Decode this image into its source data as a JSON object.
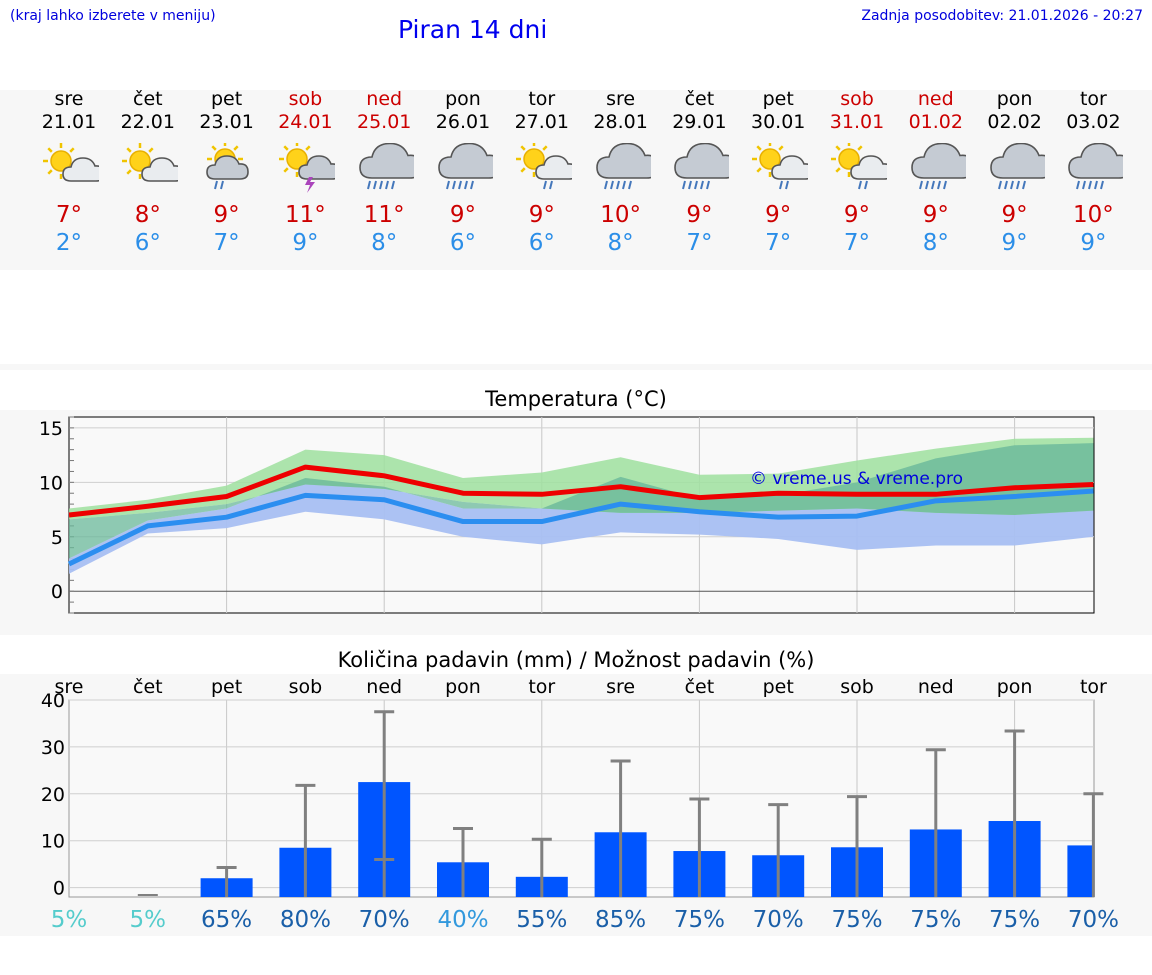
{
  "header": {
    "hint": "(kraj lahko izberete v meniju)",
    "title": "Piran 14 dni",
    "updated": "Zadnja posodobitev: 21.01.2026 - 20:27"
  },
  "colors": {
    "max_temp": "#cc0000",
    "min_temp": "#2b8ee8",
    "max_line": "#ee0000",
    "min_line": "#2b8ef0",
    "max_band": "#9fe09f",
    "min_band": "#a8bff2",
    "overlap_band": "#6ab89a",
    "bar": "#0055ff",
    "whisker": "#808080",
    "pct_low": "#55cccc",
    "pct_mid": "#3399dd",
    "pct_high": "#1a5fa8",
    "watermark": "#0000dd"
  },
  "days": [
    {
      "name": "sre",
      "date": "21.01",
      "weekend": false,
      "icon": "partly-cloudy-icon",
      "max": "7°",
      "min": "2°"
    },
    {
      "name": "čet",
      "date": "22.01",
      "weekend": false,
      "icon": "partly-cloudy-icon",
      "max": "8°",
      "min": "6°"
    },
    {
      "name": "pet",
      "date": "23.01",
      "weekend": false,
      "icon": "sun-rain-icon",
      "max": "9°",
      "min": "7°"
    },
    {
      "name": "sob",
      "date": "24.01",
      "weekend": true,
      "icon": "sun-thunder-icon",
      "max": "11°",
      "min": "9°"
    },
    {
      "name": "ned",
      "date": "25.01",
      "weekend": true,
      "icon": "rain-cloud-icon",
      "max": "11°",
      "min": "8°"
    },
    {
      "name": "pon",
      "date": "26.01",
      "weekend": false,
      "icon": "rain-cloud-icon",
      "max": "9°",
      "min": "6°"
    },
    {
      "name": "tor",
      "date": "27.01",
      "weekend": false,
      "icon": "sun-light-rain-icon",
      "max": "9°",
      "min": "6°"
    },
    {
      "name": "sre",
      "date": "28.01",
      "weekend": false,
      "icon": "rain-cloud-icon",
      "max": "10°",
      "min": "8°"
    },
    {
      "name": "čet",
      "date": "29.01",
      "weekend": false,
      "icon": "rain-cloud-icon",
      "max": "9°",
      "min": "7°"
    },
    {
      "name": "pet",
      "date": "30.01",
      "weekend": false,
      "icon": "sun-light-rain-icon",
      "max": "9°",
      "min": "7°"
    },
    {
      "name": "sob",
      "date": "31.01",
      "weekend": true,
      "icon": "sun-light-rain-icon",
      "max": "9°",
      "min": "7°"
    },
    {
      "name": "ned",
      "date": "01.02",
      "weekend": true,
      "icon": "rain-cloud-icon",
      "max": "9°",
      "min": "8°"
    },
    {
      "name": "pon",
      "date": "02.02",
      "weekend": false,
      "icon": "rain-cloud-icon",
      "max": "9°",
      "min": "9°"
    },
    {
      "name": "tor",
      "date": "03.02",
      "weekend": false,
      "icon": "rain-cloud-icon",
      "max": "10°",
      "min": "9°"
    }
  ],
  "chart_data": [
    {
      "type": "line",
      "title": "Temperatura (°C)",
      "categories": [
        "sre",
        "čet",
        "pet",
        "sob",
        "ned",
        "pon",
        "tor",
        "sre",
        "čet",
        "pet",
        "sob",
        "ned",
        "pon",
        "tor"
      ],
      "ylim": [
        -2,
        16
      ],
      "yticks": [
        0,
        5,
        10,
        15
      ],
      "watermark": "© vreme.us & vreme.pro",
      "series": [
        {
          "name": "max",
          "values": [
            7,
            7.8,
            8.7,
            11.4,
            10.6,
            9,
            8.9,
            9.6,
            8.6,
            9,
            8.9,
            8.9,
            9.5,
            9.8
          ]
        },
        {
          "name": "min",
          "values": [
            2.5,
            6,
            6.8,
            8.8,
            8.4,
            6.4,
            6.4,
            8,
            7.3,
            6.8,
            6.9,
            8.3,
            8.7,
            9.2
          ]
        }
      ],
      "bands": [
        {
          "name": "max_range",
          "low": [
            6.6,
            7.2,
            8,
            9.8,
            9.4,
            8.2,
            7.6,
            7.2,
            7.2,
            7.4,
            7.6,
            7.2,
            7,
            7.4
          ],
          "high": [
            7.6,
            8.4,
            9.7,
            13,
            12.5,
            10.4,
            10.9,
            12.3,
            10.7,
            10.8,
            12,
            13.1,
            14,
            14.1
          ]
        },
        {
          "name": "min_range",
          "low": [
            1.6,
            5.3,
            5.8,
            7.3,
            6.6,
            5,
            4.3,
            5.4,
            5.2,
            4.8,
            3.8,
            4.2,
            4.2,
            5
          ]
        },
        {
          "name": "min_range_high",
          "values": [
            3,
            6.5,
            7.6,
            10.4,
            9.6,
            7.6,
            7.6,
            10.5,
            8.5,
            8.8,
            10,
            12.2,
            13.4,
            13.6
          ]
        }
      ]
    },
    {
      "type": "bar",
      "title": "Količina padavin (mm) / Možnost padavin (%)",
      "categories": [
        "sre",
        "čet",
        "pet",
        "sob",
        "ned",
        "pon",
        "tor",
        "sre",
        "čet",
        "pet",
        "sob",
        "ned",
        "pon",
        "tor"
      ],
      "ylim": [
        -2,
        40
      ],
      "yticks": [
        0,
        10,
        20,
        30,
        40
      ],
      "values": [
        0,
        0,
        2,
        8.5,
        22.5,
        5.4,
        2.3,
        11.8,
        7.8,
        6.9,
        8.6,
        12.4,
        14.2,
        9
      ],
      "whisker_low": [
        0,
        0,
        0,
        0,
        6,
        0,
        0,
        0,
        0,
        0,
        0,
        0,
        0,
        0
      ],
      "whisker_high": [
        0,
        0,
        4.3,
        21.8,
        37.5,
        12.6,
        10.3,
        27,
        18.9,
        17.7,
        19.4,
        29.4,
        33.4,
        20
      ],
      "probability": [
        "5%",
        "5%",
        "65%",
        "80%",
        "70%",
        "40%",
        "55%",
        "85%",
        "75%",
        "70%",
        "75%",
        "75%",
        "75%",
        "70%"
      ]
    }
  ]
}
